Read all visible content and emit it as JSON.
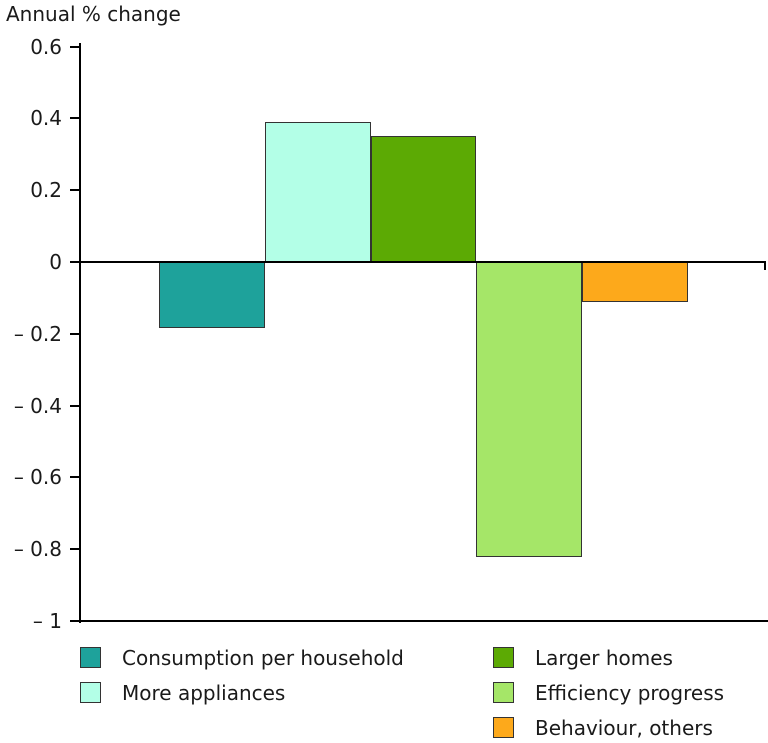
{
  "chart_data": {
    "type": "bar",
    "title": "Annual % change",
    "categories": [
      "Consumption per household",
      "More appliances",
      "Larger homes",
      "Efficiency progress",
      "Behaviour, others"
    ],
    "values": [
      -0.18,
      0.39,
      0.35,
      -0.82,
      -0.11
    ],
    "bar_colors": [
      "#1EA29B",
      "#B3FFE7",
      "#5CAA04",
      "#A5E668",
      "#FDA91B"
    ],
    "xlabel": "",
    "ylabel": "Annual % change",
    "ylim": [
      -1,
      0.6
    ],
    "ytick_step": 0.2,
    "yticks": [
      {
        "value": 0.6,
        "label": "0.6"
      },
      {
        "value": 0.4,
        "label": "0.4"
      },
      {
        "value": 0.2,
        "label": "0.2"
      },
      {
        "value": 0,
        "label": "0"
      },
      {
        "value": -0.2,
        "label": "– 0.2"
      },
      {
        "value": -0.4,
        "label": "– 0.4"
      },
      {
        "value": -0.6,
        "label": "– 0.6"
      },
      {
        "value": -0.8,
        "label": "– 0.8"
      },
      {
        "value": -1,
        "label": "– 1"
      }
    ],
    "grid": false,
    "legend_position": "bottom"
  },
  "legend": {
    "columns": [
      [
        {
          "label": "Consumption per household",
          "color": "#1EA29B"
        },
        {
          "label": "More appliances",
          "color": "#B3FFE7"
        }
      ],
      [
        {
          "label": "Larger homes",
          "color": "#5CAA04"
        },
        {
          "label": "Efficiency progress",
          "color": "#A5E668"
        },
        {
          "label": "Behaviour, others",
          "color": "#FDA91B"
        }
      ]
    ]
  },
  "colors": {
    "axis": "#000000",
    "bar_border": "#333333",
    "text": "#1a1a1a",
    "background": "#ffffff"
  }
}
